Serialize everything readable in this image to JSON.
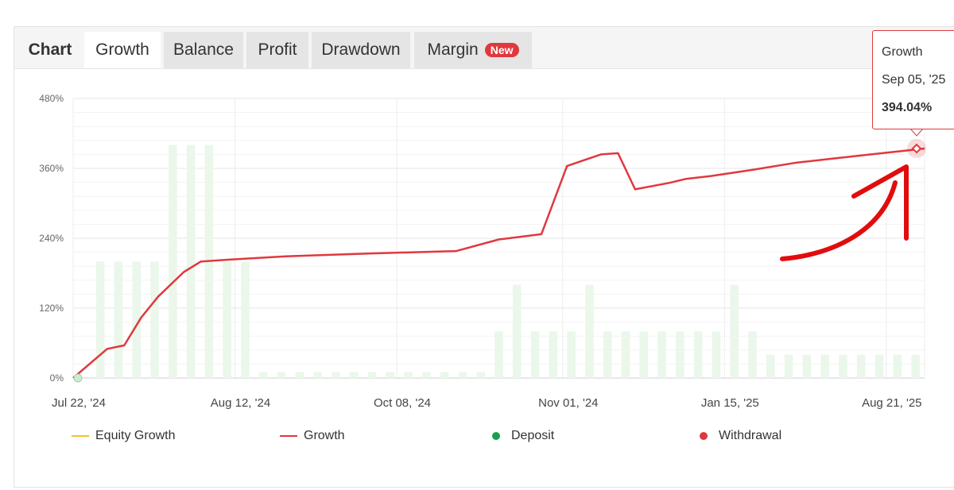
{
  "tabs": {
    "title": "Chart",
    "items": [
      {
        "label": "Growth",
        "active": true
      },
      {
        "label": "Balance",
        "active": false
      },
      {
        "label": "Profit",
        "active": false
      },
      {
        "label": "Drawdown",
        "active": false
      },
      {
        "label": "Margin",
        "active": false,
        "badge": "New"
      }
    ]
  },
  "tooltip": {
    "series": "Growth",
    "date": "Sep 05, '25",
    "value": "394.04%"
  },
  "legend": [
    {
      "label": "Equity Growth",
      "color": "#f2c230",
      "marker": "line"
    },
    {
      "label": "Growth",
      "color": "#e0383e",
      "marker": "line"
    },
    {
      "label": "Deposit",
      "color": "#19a04b",
      "marker": "dot"
    },
    {
      "label": "Withdrawal",
      "color": "#e0383e",
      "marker": "dot"
    }
  ],
  "chart_data": {
    "type": "line",
    "y_ticks": [
      "0%",
      "120%",
      "240%",
      "360%",
      "480%"
    ],
    "ylim": [
      0,
      480
    ],
    "x_ticks": [
      "Jul 22, '24",
      "Aug 12, '24",
      "Oct 08, '24",
      "Nov 01, '24",
      "Jan 15, '25",
      "Aug 21, '25"
    ],
    "grid": true,
    "legend_position": "bottom",
    "series": [
      {
        "name": "Growth",
        "color": "#e0383e",
        "x_index": [
          0,
          4,
          6,
          8,
          10,
          13,
          15,
          18,
          25,
          35,
          45,
          50,
          55,
          58,
          60,
          62,
          64,
          66,
          70,
          72,
          75,
          80,
          85,
          90,
          95,
          100
        ],
        "values": [
          0,
          50,
          56,
          104,
          140,
          182,
          200,
          203,
          209,
          214,
          218,
          238,
          247,
          364,
          374,
          384,
          386,
          324,
          335,
          342,
          347,
          358,
          370,
          378,
          386,
          394.04
        ]
      },
      {
        "name": "Equity Growth",
        "color": "#f2c230",
        "x_index": [
          0,
          100
        ],
        "values": [
          0,
          394.04
        ]
      }
    ],
    "bars": {
      "color": "#eaf7ea",
      "values": [
        0,
        200,
        200,
        200,
        200,
        400,
        400,
        400,
        200,
        200,
        10,
        10,
        10,
        10,
        10,
        10,
        10,
        10,
        10,
        10,
        10,
        10,
        10,
        80,
        160,
        80,
        80,
        80,
        160,
        80,
        80,
        80,
        80,
        80,
        80,
        80,
        160,
        80,
        40,
        40,
        40,
        40,
        40,
        40,
        40,
        40,
        40
      ]
    },
    "markers": [
      {
        "series": "Deposit",
        "x_index": 0,
        "value": 0
      },
      {
        "series": "Growth",
        "x_index": 100,
        "value": 394.04
      }
    ]
  }
}
